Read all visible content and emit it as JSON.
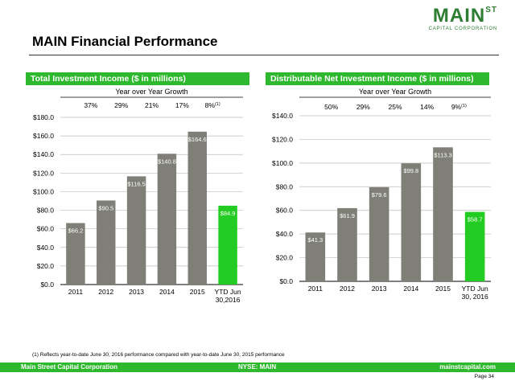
{
  "logo": {
    "main": "MAIN",
    "superscript": "ST",
    "sub": "CAPITAL CORPORATION"
  },
  "page_title": "MAIN Financial Performance",
  "footnote": "(1) Reflects year-to-date June 30, 2016 performance compared with year-to-date June 30, 2015 performance",
  "footer": {
    "company": "Main Street Capital Corporation",
    "ticker": "NYSE: MAIN",
    "website": "mainstcapital.com"
  },
  "page_number": "Page 34",
  "colors": {
    "accent": "#2eb82e",
    "bar_gray": "#7f7f77",
    "bar_green": "#22cc22",
    "brand_dark": "#2e7d32"
  },
  "chart_data": [
    {
      "type": "bar",
      "title": "Total Investment Income ($ in millions)",
      "growth_label": "Year over Year Growth",
      "growth": [
        "37%",
        "29%",
        "21%",
        "17%",
        "8%"
      ],
      "growth_note": "(1)",
      "categories": [
        "2011",
        "2012",
        "2013",
        "2014",
        "2015",
        "YTD Jun 30,2016"
      ],
      "category_lines": [
        [
          "2011"
        ],
        [
          "2012"
        ],
        [
          "2013"
        ],
        [
          "2014"
        ],
        [
          "2015"
        ],
        [
          "YTD Jun",
          "30,2016"
        ]
      ],
      "values": [
        66.2,
        90.5,
        116.5,
        140.8,
        164.6,
        84.9
      ],
      "value_labels": [
        "$66.2",
        "$90.5",
        "$116.5",
        "$140.8",
        "$164.6",
        "$84.9"
      ],
      "highlight_index": 5,
      "ylim": [
        0,
        180
      ],
      "yticks": [
        0,
        20,
        40,
        60,
        80,
        100,
        120,
        140,
        160,
        180
      ],
      "ytick_labels": [
        "$0.0",
        "$20.0",
        "$40.0",
        "$60.0",
        "$80.0",
        "$100.0",
        "$120.0",
        "$140.0",
        "$160.0",
        "$180.0"
      ],
      "grid": true
    },
    {
      "type": "bar",
      "title": "Distributable Net Investment Income ($ in millions)",
      "growth_label": "Year over Year Growth",
      "growth": [
        "50%",
        "29%",
        "25%",
        "14%",
        "9%"
      ],
      "growth_note": "(1)",
      "categories": [
        "2011",
        "2012",
        "2013",
        "2014",
        "2015",
        "YTD Jun 30, 2016"
      ],
      "category_lines": [
        [
          "2011"
        ],
        [
          "2012"
        ],
        [
          "2013"
        ],
        [
          "2014"
        ],
        [
          "2015"
        ],
        [
          "YTD Jun",
          "30, 2016"
        ]
      ],
      "values": [
        41.3,
        61.9,
        79.6,
        99.8,
        113.3,
        58.7
      ],
      "value_labels": [
        "$41.3",
        "$61.9",
        "$79.6",
        "$99.8",
        "$113.3",
        "$58.7"
      ],
      "highlight_index": 5,
      "ylim": [
        0,
        140
      ],
      "yticks": [
        0,
        20,
        40,
        60,
        80,
        100,
        120,
        140
      ],
      "ytick_labels": [
        "$0.0",
        "$20.0",
        "$40.0",
        "$60.0",
        "$80.0",
        "$100.0",
        "$120.0",
        "$140.0"
      ],
      "grid": true
    }
  ]
}
